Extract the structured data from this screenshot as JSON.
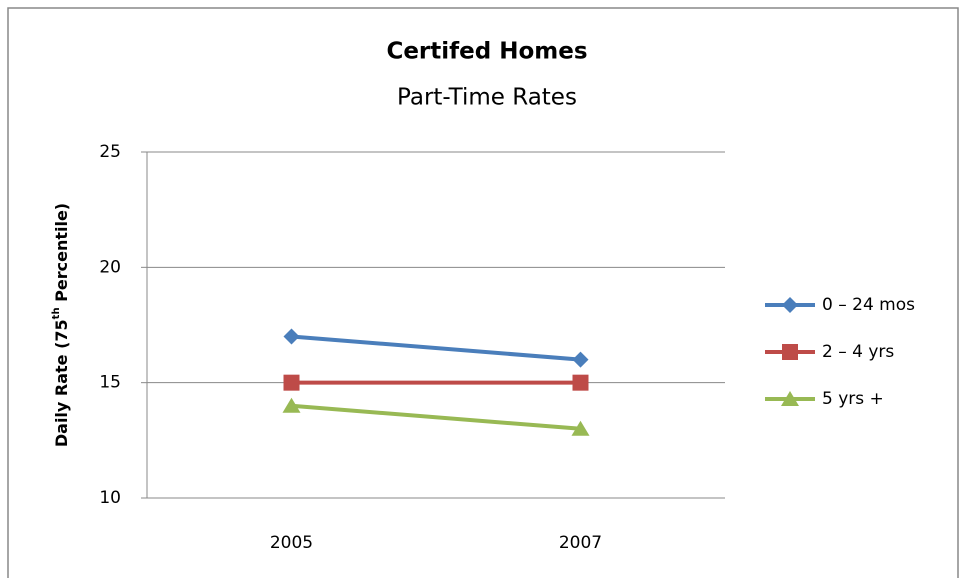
{
  "chart_data": {
    "type": "line",
    "title": "Certifed Homes",
    "subtitle": "Part-Time Rates",
    "y_label": [
      "Daily Rate (75",
      "th",
      " Percentile)"
    ],
    "categories": [
      "2005",
      "2007"
    ],
    "series": [
      {
        "name": "0 – 24 mos",
        "color": "#4a7ebb",
        "marker": "diamond",
        "values": [
          17,
          16
        ]
      },
      {
        "name": "2 – 4 yrs",
        "color": "#be4b48",
        "marker": "square",
        "values": [
          15,
          15
        ]
      },
      {
        "name": "5 yrs +",
        "color": "#98b954",
        "marker": "triangle",
        "values": [
          14,
          13
        ]
      }
    ],
    "ylim": [
      10,
      25
    ],
    "yticks": [
      10,
      15,
      20,
      25
    ],
    "grid": true,
    "legend": "right"
  }
}
